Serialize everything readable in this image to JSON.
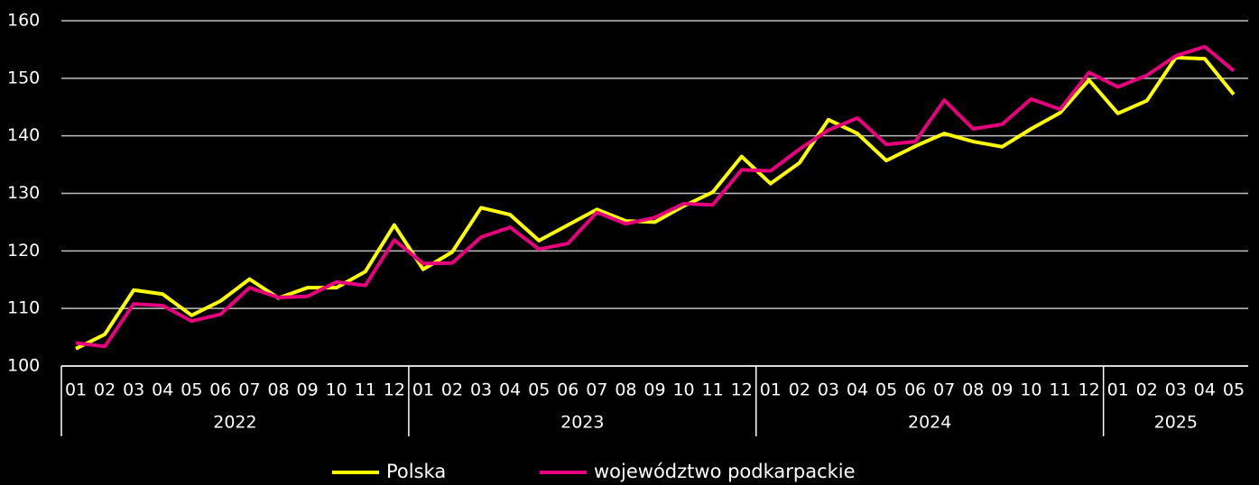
{
  "chart_data": {
    "type": "line",
    "x": [
      "01",
      "02",
      "03",
      "04",
      "05",
      "06",
      "07",
      "08",
      "09",
      "10",
      "11",
      "12",
      "01",
      "02",
      "03",
      "04",
      "05",
      "06",
      "07",
      "08",
      "09",
      "10",
      "11",
      "12",
      "01",
      "02",
      "03",
      "04",
      "05",
      "06",
      "07",
      "08",
      "09",
      "10",
      "11",
      "12",
      "01",
      "02",
      "03",
      "04",
      "05"
    ],
    "years": [
      "2022",
      "2023",
      "2024",
      "2025"
    ],
    "series": [
      {
        "name": "Polska",
        "color": "#ffff00",
        "values": [
          103,
          105.5,
          113.2,
          112.5,
          108.8,
          111.3,
          115.1,
          111.8,
          113.6,
          113.6,
          116.4,
          124.5,
          116.8,
          119.8,
          127.5,
          126.3,
          121.8,
          124.5,
          127.2,
          125.2,
          125.0,
          127.8,
          130.2,
          136.4,
          131.7,
          135.3,
          142.8,
          140.4,
          135.7,
          138.2,
          140.4,
          139.0,
          138.1,
          141.2,
          144.0,
          149.7,
          143.9,
          146.1,
          153.6,
          153.4,
          147.2
        ]
      },
      {
        "name": "województwo podkarpackie",
        "color": "#e6007e",
        "values": [
          104.0,
          103.4,
          110.8,
          110.5,
          107.8,
          109.0,
          113.6,
          111.9,
          112.1,
          114.6,
          114.0,
          121.9,
          117.8,
          117.9,
          122.4,
          124.1,
          120.3,
          121.3,
          126.7,
          124.7,
          125.8,
          128.2,
          128.0,
          134.1,
          133.9,
          137.7,
          141.0,
          143.1,
          138.5,
          139.0,
          146.2,
          141.2,
          142.0,
          146.4,
          144.6,
          151.0,
          148.5,
          150.5,
          153.9,
          155.5,
          151.3
        ]
      }
    ],
    "ylim": [
      100,
      160
    ],
    "yticks": [
      100,
      110,
      120,
      130,
      140,
      150,
      160
    ],
    "grid": true,
    "legend": "bottom"
  }
}
